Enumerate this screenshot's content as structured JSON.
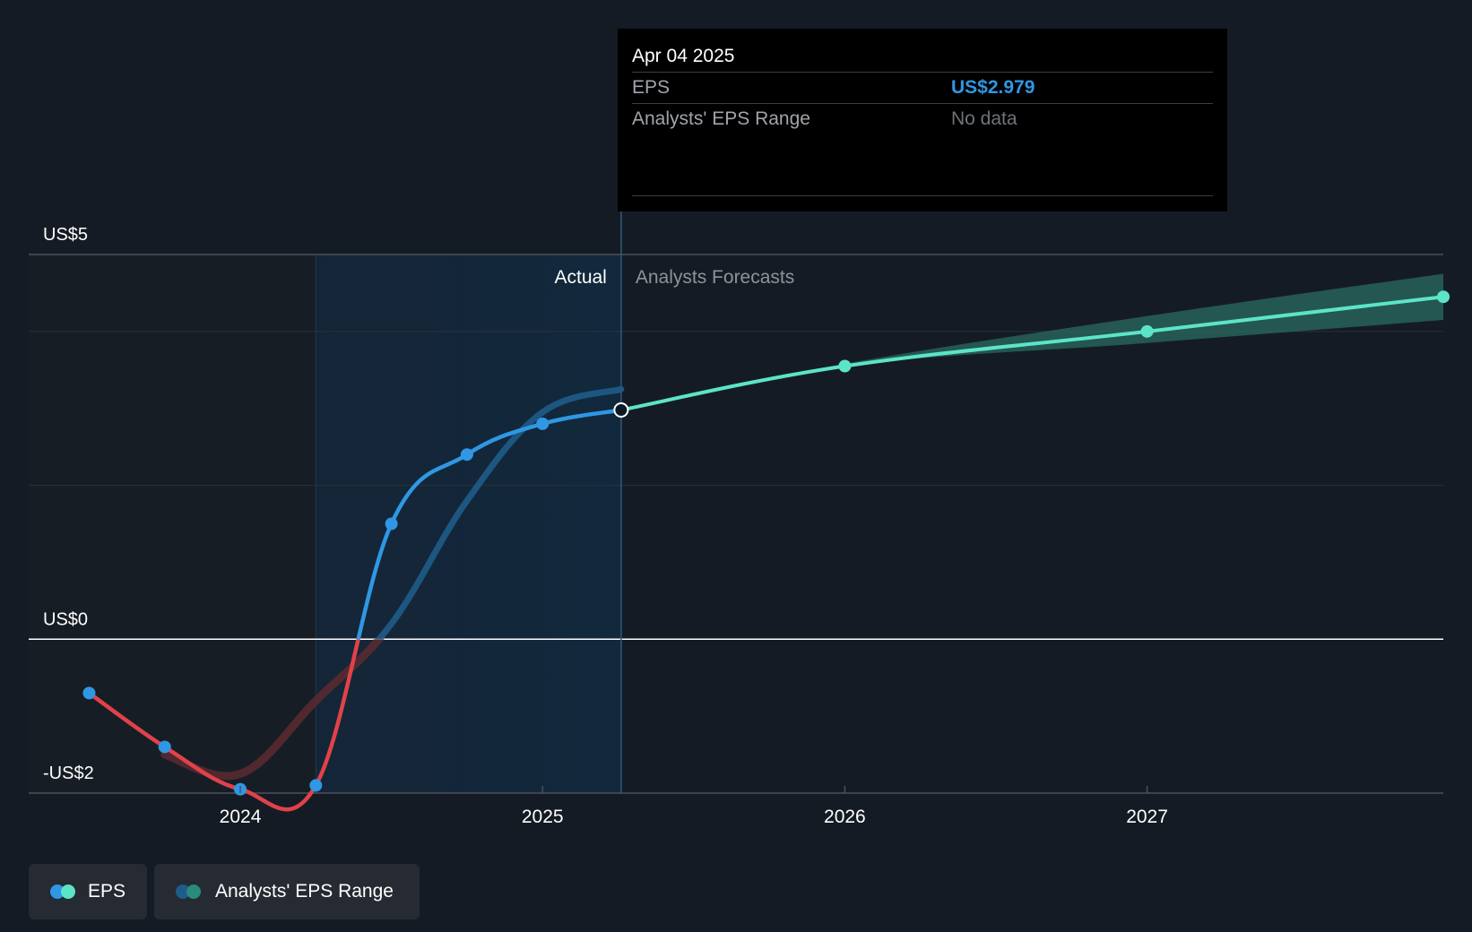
{
  "colors": {
    "background": "#151b24",
    "eps_actual_positive": "#2f97e3",
    "eps_actual_negative": "#e0424a",
    "eps_forecast": "#5ce4c8",
    "range_actual": "#1e5c8a",
    "range_forecast": "#2a6b62",
    "gridline": "#3b424c",
    "zero_line": "#ffffff"
  },
  "labels": {
    "actual": "Actual",
    "forecasts": "Analysts Forecasts"
  },
  "tooltip": {
    "date": "Apr 04 2025",
    "eps_key": "EPS",
    "eps_value": "US$2.979",
    "range_key": "Analysts' EPS Range",
    "range_value": "No data"
  },
  "legend": {
    "eps": "EPS",
    "range": "Analysts' EPS Range",
    "eps_icon": "eps-dots-icon",
    "range_icon": "range-dots-icon"
  },
  "chart_data": {
    "type": "line",
    "y_ticks": [
      {
        "value": 5,
        "label": "US$5"
      },
      {
        "value": 0,
        "label": "US$0"
      },
      {
        "value": -2,
        "label": "-US$2"
      }
    ],
    "x_ticks": [
      {
        "value": 2024.0,
        "label": "2024"
      },
      {
        "value": 2025.0,
        "label": "2025"
      },
      {
        "value": 2026.0,
        "label": "2026"
      },
      {
        "value": 2027.0,
        "label": "2027"
      }
    ],
    "xlim": [
      2023.3,
      2027.98
    ],
    "ylim": [
      -2.0,
      5.0
    ],
    "highlight_range": [
      2024.25,
      2025.26
    ],
    "cursor_x": 2025.26,
    "series": [
      {
        "name": "EPS",
        "kind": "actual",
        "points": [
          {
            "x": 2023.5,
            "y": -0.7
          },
          {
            "x": 2023.75,
            "y": -1.4
          },
          {
            "x": 2024.0,
            "y": -1.95
          },
          {
            "x": 2024.25,
            "y": -1.9
          },
          {
            "x": 2024.5,
            "y": 1.5
          },
          {
            "x": 2024.75,
            "y": 2.4
          },
          {
            "x": 2025.0,
            "y": 2.8
          },
          {
            "x": 2025.26,
            "y": 2.979
          }
        ]
      },
      {
        "name": "EPS",
        "kind": "forecast",
        "points": [
          {
            "x": 2025.26,
            "y": 2.979
          },
          {
            "x": 2026.0,
            "y": 3.55
          },
          {
            "x": 2027.0,
            "y": 4.0
          },
          {
            "x": 2027.98,
            "y": 4.45
          }
        ]
      },
      {
        "name": "Analysts' EPS Range",
        "kind": "range_actual",
        "points": [
          {
            "x": 2023.75,
            "y": -1.5
          },
          {
            "x": 2024.0,
            "y": -1.75
          },
          {
            "x": 2024.25,
            "y": -0.8
          },
          {
            "x": 2024.5,
            "y": 0.2
          },
          {
            "x": 2024.75,
            "y": 1.8
          },
          {
            "x": 2025.0,
            "y": 2.95
          },
          {
            "x": 2025.26,
            "y": 3.25
          }
        ]
      },
      {
        "name": "Analysts' EPS Range",
        "kind": "range_forecast",
        "upper": [
          {
            "x": 2026.0,
            "y": 3.58
          },
          {
            "x": 2027.0,
            "y": 4.2
          },
          {
            "x": 2027.98,
            "y": 4.75
          }
        ],
        "lower": [
          {
            "x": 2026.0,
            "y": 3.55
          },
          {
            "x": 2027.0,
            "y": 3.85
          },
          {
            "x": 2027.98,
            "y": 4.15
          }
        ]
      }
    ]
  }
}
